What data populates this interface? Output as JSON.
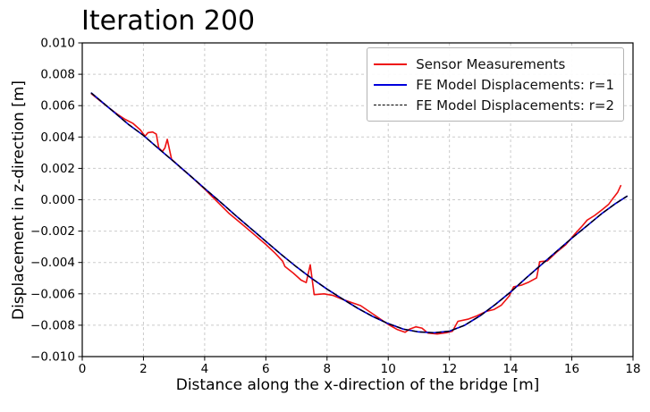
{
  "chart_data": {
    "type": "line",
    "title": "Iteration 200",
    "xlabel": "Distance along the x-direction of the bridge [m]",
    "ylabel": "Displacement in z-direction [m]",
    "xlim": [
      0,
      18
    ],
    "ylim": [
      -0.01,
      0.01
    ],
    "x_ticks": {
      "values": [
        0,
        2,
        4,
        6,
        8,
        10,
        12,
        14,
        16,
        18
      ],
      "labels": [
        "0",
        "2",
        "4",
        "6",
        "8",
        "10",
        "12",
        "14",
        "16",
        "18"
      ]
    },
    "y_ticks": {
      "values": [
        0.01,
        0.008,
        0.006,
        0.004,
        0.002,
        0.0,
        -0.002,
        -0.004,
        -0.006,
        -0.008,
        -0.01
      ],
      "labels": [
        "0.010",
        "0.008",
        "0.006",
        "0.004",
        "0.002",
        "0.000",
        "−0.002",
        "−0.004",
        "−0.006",
        "−0.008",
        "−0.010"
      ]
    },
    "grid": {
      "show": true,
      "color": "#cbcbcb",
      "style": "dashed"
    },
    "axes_color": "#000000",
    "background": "#ffffff",
    "legend": {
      "position": "upper-right",
      "border_color": "#b4b4b4",
      "background": "#ffffff"
    },
    "series": [
      {
        "name": "Sensor Measurements",
        "color": "#ee1111",
        "style": "solid",
        "width": 1.6,
        "points": [
          [
            0.3,
            0.00675
          ],
          [
            0.6,
            0.00628
          ],
          [
            0.9,
            0.00582
          ],
          [
            1.15,
            0.00545
          ],
          [
            1.4,
            0.00513
          ],
          [
            1.65,
            0.00488
          ],
          [
            1.9,
            0.00445
          ],
          [
            2.05,
            0.00405
          ],
          [
            2.15,
            0.00428
          ],
          [
            2.3,
            0.00432
          ],
          [
            2.42,
            0.00418
          ],
          [
            2.5,
            0.0033
          ],
          [
            2.62,
            0.00308
          ],
          [
            2.7,
            0.0033
          ],
          [
            2.78,
            0.00385
          ],
          [
            2.92,
            0.00258
          ],
          [
            3.2,
            0.00208
          ],
          [
            3.6,
            0.0014
          ],
          [
            4.0,
            0.00068
          ],
          [
            4.4,
            -0.0001
          ],
          [
            4.8,
            -0.00088
          ],
          [
            5.2,
            -0.00152
          ],
          [
            5.6,
            -0.00218
          ],
          [
            6.0,
            -0.00285
          ],
          [
            6.3,
            -0.0034
          ],
          [
            6.55,
            -0.00392
          ],
          [
            6.62,
            -0.00425
          ],
          [
            6.9,
            -0.00468
          ],
          [
            7.15,
            -0.00512
          ],
          [
            7.32,
            -0.00528
          ],
          [
            7.45,
            -0.00415
          ],
          [
            7.58,
            -0.00605
          ],
          [
            7.9,
            -0.006
          ],
          [
            8.2,
            -0.0061
          ],
          [
            8.5,
            -0.00635
          ],
          [
            8.8,
            -0.00655
          ],
          [
            9.1,
            -0.00675
          ],
          [
            9.4,
            -0.00715
          ],
          [
            9.7,
            -0.00755
          ],
          [
            10.0,
            -0.00795
          ],
          [
            10.3,
            -0.00828
          ],
          [
            10.55,
            -0.00845
          ],
          [
            10.7,
            -0.00825
          ],
          [
            10.9,
            -0.0081
          ],
          [
            11.1,
            -0.00818
          ],
          [
            11.3,
            -0.0085
          ],
          [
            11.6,
            -0.00856
          ],
          [
            11.9,
            -0.00848
          ],
          [
            12.1,
            -0.00838
          ],
          [
            12.28,
            -0.00775
          ],
          [
            12.6,
            -0.00762
          ],
          [
            12.9,
            -0.0074
          ],
          [
            13.2,
            -0.00712
          ],
          [
            13.45,
            -0.007
          ],
          [
            13.7,
            -0.00672
          ],
          [
            13.95,
            -0.00615
          ],
          [
            14.1,
            -0.00555
          ],
          [
            14.35,
            -0.00545
          ],
          [
            14.6,
            -0.00525
          ],
          [
            14.85,
            -0.00498
          ],
          [
            14.95,
            -0.00395
          ],
          [
            15.2,
            -0.0039
          ],
          [
            15.5,
            -0.00335
          ],
          [
            15.8,
            -0.00287
          ],
          [
            16.1,
            -0.00218
          ],
          [
            16.35,
            -0.00165
          ],
          [
            16.5,
            -0.0013
          ],
          [
            16.75,
            -0.001
          ],
          [
            17.0,
            -0.00062
          ],
          [
            17.2,
            -0.0003
          ],
          [
            17.35,
            0.0001
          ],
          [
            17.5,
            0.00048
          ],
          [
            17.6,
            0.0009
          ]
        ]
      },
      {
        "name": "FE Model Displacements: r=1",
        "color": "#0000dd",
        "style": "solid",
        "width": 1.7,
        "points": [
          [
            0.3,
            0.0068
          ],
          [
            1.0,
            0.00565
          ],
          [
            1.5,
            0.00482
          ],
          [
            2.0,
            0.0041
          ],
          [
            2.5,
            0.00325
          ],
          [
            3.0,
            0.00242
          ],
          [
            3.5,
            0.00158
          ],
          [
            4.0,
            0.00072
          ],
          [
            4.5,
            -0.00012
          ],
          [
            5.0,
            -0.00098
          ],
          [
            5.5,
            -0.00182
          ],
          [
            6.0,
            -0.00265
          ],
          [
            6.5,
            -0.00348
          ],
          [
            7.0,
            -0.00428
          ],
          [
            7.5,
            -0.00502
          ],
          [
            8.0,
            -0.0057
          ],
          [
            8.5,
            -0.00632
          ],
          [
            9.0,
            -0.00692
          ],
          [
            9.5,
            -0.00745
          ],
          [
            10.0,
            -0.0079
          ],
          [
            10.5,
            -0.00825
          ],
          [
            11.0,
            -0.00843
          ],
          [
            11.5,
            -0.00848
          ],
          [
            12.0,
            -0.00838
          ],
          [
            12.5,
            -0.008
          ],
          [
            13.0,
            -0.0074
          ],
          [
            13.5,
            -0.00668
          ],
          [
            14.0,
            -0.00588
          ],
          [
            14.5,
            -0.005
          ],
          [
            15.0,
            -0.00415
          ],
          [
            15.5,
            -0.0033
          ],
          [
            16.0,
            -0.00245
          ],
          [
            16.5,
            -0.00165
          ],
          [
            17.0,
            -0.00085
          ],
          [
            17.4,
            -0.00028
          ],
          [
            17.8,
            0.00022
          ]
        ]
      },
      {
        "name": "FE Model Displacements: r=2",
        "color": "#000000",
        "style": "dashed",
        "width": 1.3,
        "points": [
          [
            0.3,
            0.0068
          ],
          [
            1.0,
            0.00565
          ],
          [
            1.5,
            0.00482
          ],
          [
            2.0,
            0.0041
          ],
          [
            2.5,
            0.00325
          ],
          [
            3.0,
            0.00242
          ],
          [
            3.5,
            0.00158
          ],
          [
            4.0,
            0.00072
          ],
          [
            4.5,
            -0.00012
          ],
          [
            5.0,
            -0.00098
          ],
          [
            5.5,
            -0.00182
          ],
          [
            6.0,
            -0.00265
          ],
          [
            6.5,
            -0.00348
          ],
          [
            7.0,
            -0.00428
          ],
          [
            7.5,
            -0.00502
          ],
          [
            8.0,
            -0.0057
          ],
          [
            8.5,
            -0.00632
          ],
          [
            9.0,
            -0.00692
          ],
          [
            9.5,
            -0.00745
          ],
          [
            10.0,
            -0.0079
          ],
          [
            10.5,
            -0.00825
          ],
          [
            11.0,
            -0.00843
          ],
          [
            11.5,
            -0.00848
          ],
          [
            12.0,
            -0.00838
          ],
          [
            12.5,
            -0.008
          ],
          [
            13.0,
            -0.0074
          ],
          [
            13.5,
            -0.00668
          ],
          [
            14.0,
            -0.00588
          ],
          [
            14.5,
            -0.005
          ],
          [
            15.0,
            -0.00415
          ],
          [
            15.5,
            -0.0033
          ],
          [
            16.0,
            -0.00245
          ],
          [
            16.5,
            -0.00165
          ],
          [
            17.0,
            -0.00085
          ],
          [
            17.4,
            -0.00028
          ],
          [
            17.8,
            0.00022
          ]
        ]
      }
    ]
  }
}
